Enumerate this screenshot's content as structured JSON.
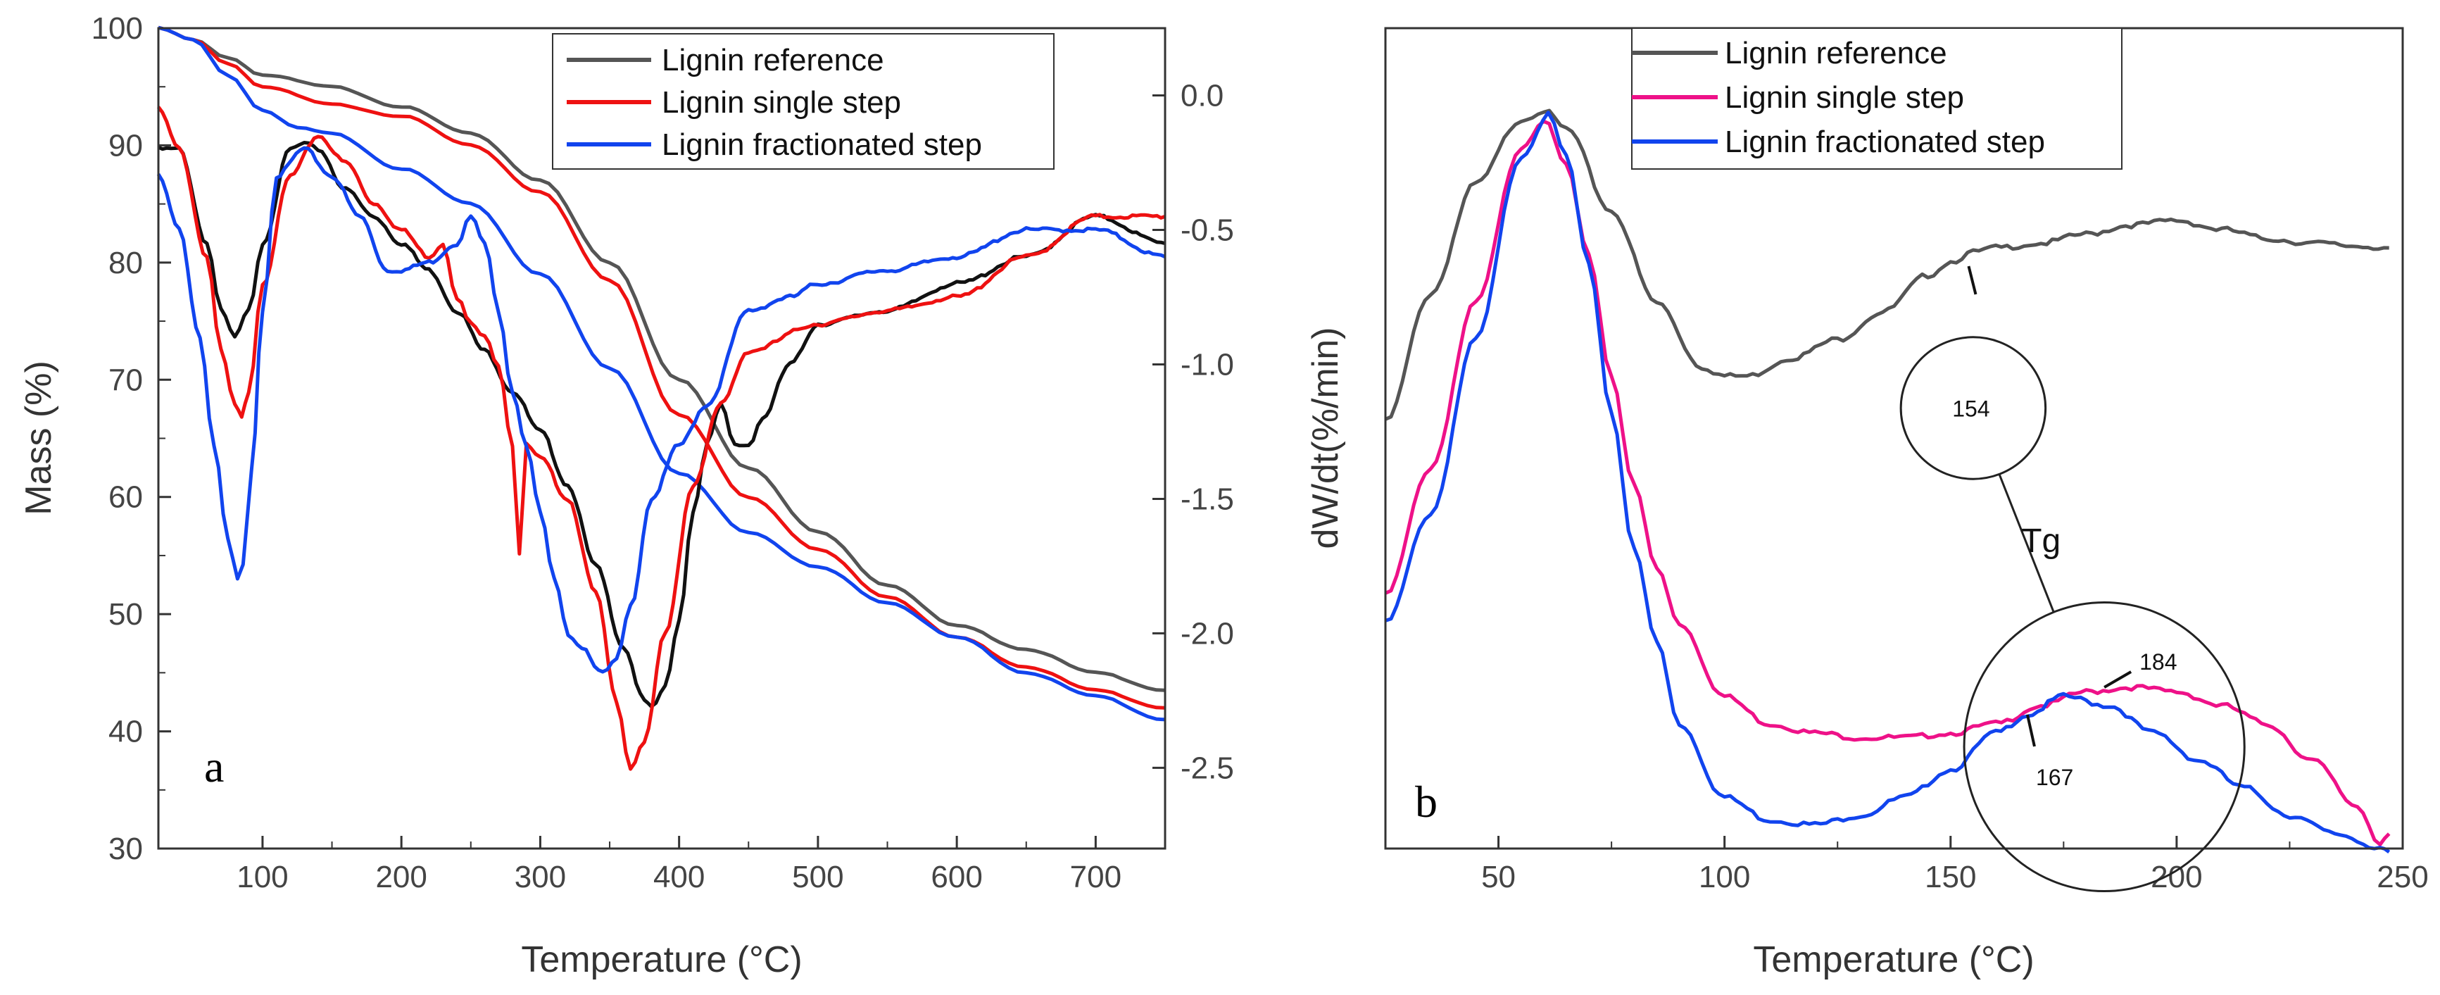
{
  "chart_data": [
    {
      "id": "a",
      "type": "line",
      "panel_label": "a",
      "xlabel": "Temperature (°C)",
      "ylabel": "Mass (%)",
      "y2label": "dW/dt(%/min)",
      "xlim": [
        25,
        750
      ],
      "ylim": [
        30,
        100
      ],
      "y2lim": [
        -2.8,
        0.25
      ],
      "xticks": [
        100,
        200,
        300,
        400,
        500,
        600,
        700
      ],
      "yticks": [
        30,
        40,
        50,
        60,
        70,
        80,
        90,
        100
      ],
      "y2ticks": [
        0.0,
        -0.5,
        -1.0,
        -1.5,
        -2.0,
        -2.5
      ],
      "y2tick_labels": [
        "0.0",
        "-0.5",
        "-1.0",
        "-1.5",
        "-2.0",
        "-2.5"
      ],
      "grid": false,
      "legend_position": "top-right",
      "series": [
        {
          "name": "Lignin reference",
          "color": "#555555",
          "axis": "y",
          "legend": true,
          "x": [
            25,
            50,
            75,
            100,
            150,
            200,
            250,
            300,
            350,
            400,
            450,
            500,
            550,
            600,
            650,
            700,
            750
          ],
          "values": [
            100,
            99,
            97.5,
            96,
            95,
            93.3,
            91,
            87,
            80,
            70,
            62.5,
            57,
            52.5,
            49,
            47,
            45,
            43.5
          ]
        },
        {
          "name": "Lignin single step",
          "color": "#ee1111",
          "axis": "y",
          "legend": true,
          "x": [
            25,
            50,
            75,
            100,
            150,
            200,
            250,
            300,
            350,
            400,
            450,
            500,
            550,
            600,
            650,
            700,
            750
          ],
          "values": [
            100,
            99,
            97,
            95,
            93.5,
            92.5,
            90,
            86,
            78.5,
            67,
            60,
            55.5,
            51.5,
            48,
            45.5,
            43.5,
            42
          ]
        },
        {
          "name": "Lignin fractionated step",
          "color": "#1144ee",
          "axis": "y",
          "legend": true,
          "x": [
            25,
            50,
            75,
            100,
            125,
            150,
            200,
            250,
            300,
            350,
            400,
            450,
            500,
            550,
            600,
            650,
            700,
            750
          ],
          "values": [
            100,
            99,
            96,
            93,
            91.5,
            91,
            88,
            85,
            79,
            71,
            62,
            57,
            54,
            51,
            48,
            45,
            43,
            41
          ]
        },
        {
          "name": "Lignin reference DTG",
          "color": "#111111",
          "axis": "y2",
          "legend": false,
          "x": [
            25,
            40,
            60,
            70,
            80,
            90,
            100,
            120,
            130,
            140,
            160,
            180,
            200,
            220,
            240,
            260,
            280,
            300,
            320,
            340,
            360,
            375,
            380,
            390,
            400,
            410,
            420,
            430,
            440,
            450,
            460,
            480,
            500,
            550,
            600,
            650,
            700,
            750
          ],
          "values": [
            -0.2,
            -0.2,
            -0.55,
            -0.8,
            -0.9,
            -0.8,
            -0.55,
            -0.2,
            -0.18,
            -0.2,
            -0.35,
            -0.45,
            -0.55,
            -0.65,
            -0.8,
            -0.95,
            -1.1,
            -1.25,
            -1.45,
            -1.75,
            -2.05,
            -2.25,
            -2.28,
            -2.2,
            -1.95,
            -1.55,
            -1.3,
            -1.15,
            -1.3,
            -1.3,
            -1.2,
            -1.0,
            -0.85,
            -0.8,
            -0.7,
            -0.6,
            -0.45,
            -0.55
          ]
        },
        {
          "name": "Lignin single step DTG",
          "color": "#ee1111",
          "axis": "y2",
          "legend": false,
          "x": [
            25,
            40,
            60,
            70,
            80,
            85,
            90,
            100,
            120,
            140,
            160,
            180,
            200,
            220,
            230,
            240,
            250,
            260,
            270,
            280,
            285,
            290,
            300,
            320,
            340,
            355,
            365,
            375,
            390,
            410,
            430,
            450,
            500,
            550,
            600,
            650,
            700,
            750
          ],
          "values": [
            -0.05,
            -0.2,
            -0.6,
            -0.95,
            -1.15,
            -1.2,
            -1.1,
            -0.7,
            -0.3,
            -0.15,
            -0.25,
            -0.4,
            -0.5,
            -0.6,
            -0.55,
            -0.75,
            -0.85,
            -0.9,
            -1.0,
            -1.3,
            -1.7,
            -1.3,
            -1.35,
            -1.5,
            -1.85,
            -2.25,
            -2.5,
            -2.4,
            -2.0,
            -1.45,
            -1.15,
            -0.95,
            -0.85,
            -0.8,
            -0.75,
            -0.6,
            -0.45,
            -0.45
          ]
        },
        {
          "name": "Lignin fractionated step DTG",
          "color": "#1144ee",
          "axis": "y2",
          "legend": false,
          "x": [
            25,
            40,
            55,
            65,
            75,
            82,
            86,
            92,
            100,
            110,
            130,
            150,
            170,
            190,
            200,
            220,
            240,
            250,
            260,
            270,
            280,
            290,
            300,
            310,
            320,
            330,
            345,
            355,
            365,
            380,
            400,
            420,
            450,
            480,
            500,
            550,
            600,
            650,
            700,
            750
          ],
          "values": [
            -0.3,
            -0.5,
            -0.9,
            -1.3,
            -1.65,
            -1.8,
            -1.75,
            -1.4,
            -0.8,
            -0.3,
            -0.2,
            -0.3,
            -0.45,
            -0.65,
            -0.65,
            -0.62,
            -0.55,
            -0.45,
            -0.55,
            -0.8,
            -1.1,
            -1.3,
            -1.55,
            -1.8,
            -2.0,
            -2.05,
            -2.15,
            -2.1,
            -1.9,
            -1.5,
            -1.3,
            -1.15,
            -0.8,
            -0.75,
            -0.7,
            -0.65,
            -0.6,
            -0.5,
            -0.5,
            -0.6
          ]
        }
      ]
    },
    {
      "id": "b",
      "type": "line",
      "panel_label": "b",
      "xlabel": "Temperature (°C)",
      "ylabel": "",
      "xlim": [
        25,
        250
      ],
      "ylim": [
        0,
        1
      ],
      "xticks": [
        50,
        100,
        150,
        200,
        250
      ],
      "grid": false,
      "legend_position": "top-left",
      "annotations": [
        {
          "text": "154",
          "x": 155,
          "y": 0.585,
          "circle_radius_x": 16
        },
        {
          "text": "184",
          "x": 184,
          "y": 0.215,
          "circle_radius_x": 31
        },
        {
          "text": "167",
          "x": 167,
          "y": 0.13
        },
        {
          "text": "Tg",
          "x": 170,
          "y": 0.44
        }
      ],
      "series": [
        {
          "name": "Lignin reference",
          "color": "#555555",
          "legend": true,
          "x": [
            25,
            35,
            45,
            55,
            60,
            65,
            75,
            85,
            95,
            100,
            105,
            115,
            125,
            135,
            145,
            150,
            155,
            160,
            170,
            180,
            190,
            200,
            210,
            220,
            230,
            240,
            247
          ],
          "values": [
            0.57,
            0.71,
            0.83,
            0.9,
            0.91,
            0.89,
            0.8,
            0.7,
            0.63,
            0.62,
            0.62,
            0.64,
            0.66,
            0.69,
            0.73,
            0.745,
            0.755,
            0.76,
            0.765,
            0.775,
            0.785,
            0.79,
            0.78,
            0.77,
            0.765,
            0.762,
            0.76
          ]
        },
        {
          "name": "Lignin single step",
          "color": "#ee1188",
          "legend": true,
          "x": [
            25,
            35,
            45,
            55,
            60,
            65,
            70,
            75,
            80,
            85,
            90,
            100,
            110,
            120,
            130,
            140,
            150,
            160,
            170,
            180,
            190,
            200,
            210,
            220,
            230,
            240,
            245,
            247
          ],
          "values": [
            0.38,
            0.52,
            0.7,
            0.87,
            0.9,
            0.85,
            0.75,
            0.62,
            0.5,
            0.41,
            0.35,
            0.27,
            0.24,
            0.23,
            0.225,
            0.225,
            0.23,
            0.24,
            0.26,
            0.275,
            0.28,
            0.275,
            0.26,
            0.24,
            0.2,
            0.15,
            0.11,
            0.12
          ]
        },
        {
          "name": "Lignin fractionated step",
          "color": "#1144ee",
          "legend": true,
          "x": [
            25,
            35,
            45,
            55,
            61,
            65,
            70,
            75,
            80,
            85,
            90,
            100,
            110,
            120,
            130,
            140,
            150,
            160,
            167,
            175,
            185,
            195,
            205,
            215,
            225,
            235,
            245,
            247
          ],
          "values": [
            0.35,
            0.47,
            0.66,
            0.86,
            0.905,
            0.86,
            0.74,
            0.58,
            0.43,
            0.33,
            0.24,
            0.16,
            0.135,
            0.13,
            0.14,
            0.16,
            0.19,
            0.23,
            0.25,
            0.27,
            0.26,
            0.23,
            0.2,
            0.17,
            0.14,
            0.12,
            0.105,
            0.1
          ]
        }
      ]
    }
  ]
}
